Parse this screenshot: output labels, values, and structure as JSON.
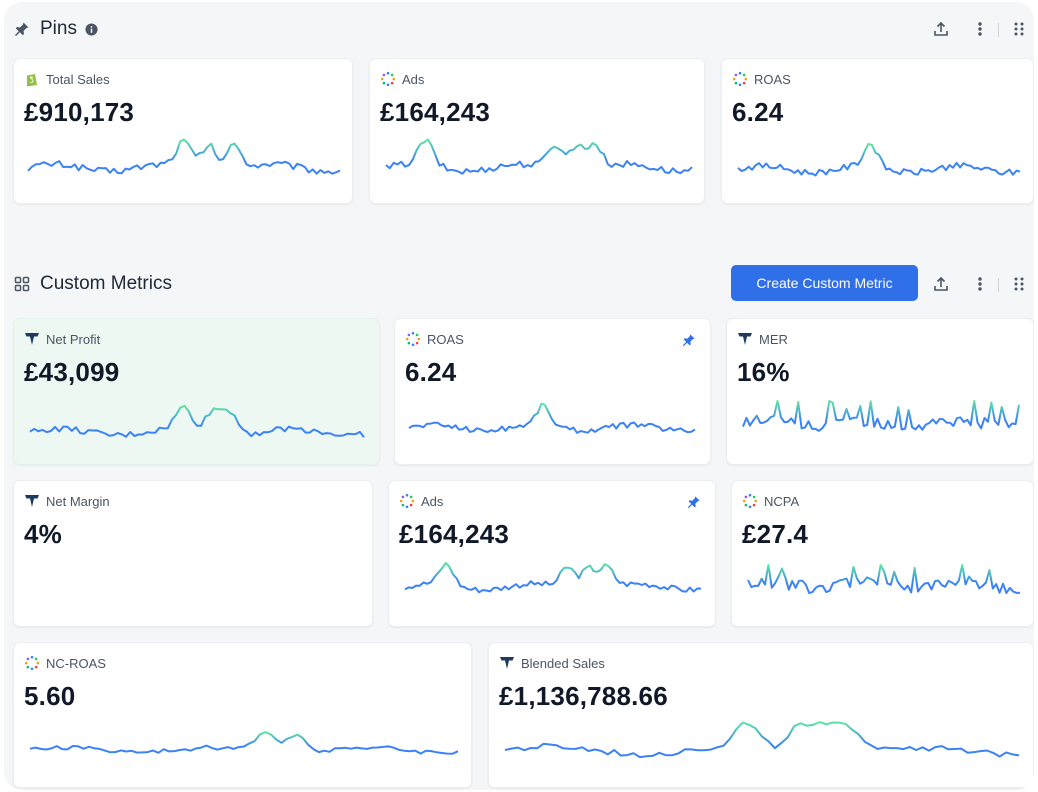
{
  "pins": {
    "title": "Pins",
    "info_icon": "info-icon",
    "cards": [
      {
        "label": "Total Sales",
        "value": "£910,173",
        "icon": "shopify-icon"
      },
      {
        "label": "Ads",
        "value": "£164,243",
        "icon": "ads-dots-icon"
      },
      {
        "label": "ROAS",
        "value": "6.24",
        "icon": "ads-dots-icon"
      }
    ]
  },
  "custom_metrics": {
    "title": "Custom Metrics",
    "create_button": "Create Custom Metric",
    "cards": [
      {
        "label": "Net Profit",
        "value": "£43,099",
        "icon": "triple-whale-icon"
      },
      {
        "label": "ROAS",
        "value": "6.24",
        "icon": "ads-dots-icon",
        "pinned": true
      },
      {
        "label": "MER",
        "value": "16%",
        "icon": "triple-whale-icon"
      },
      {
        "label": "Net Margin",
        "value": "4%",
        "icon": "triple-whale-icon"
      },
      {
        "label": "Ads",
        "value": "£164,243",
        "icon": "ads-dots-icon",
        "pinned": true
      },
      {
        "label": "NCPA",
        "value": "£27.4",
        "icon": "ads-dots-icon"
      },
      {
        "label": "NC-ROAS",
        "value": "5.60",
        "icon": "ads-dots-icon"
      },
      {
        "label": "Blended Sales",
        "value": "£1,136,788.66",
        "icon": "triple-whale-icon"
      }
    ]
  },
  "colors": {
    "accent": "#2f6fe8",
    "spark_start": "#3b82f6",
    "spark_peak": "#5ee6a0",
    "highlight_bg": "#ecf8f1"
  }
}
